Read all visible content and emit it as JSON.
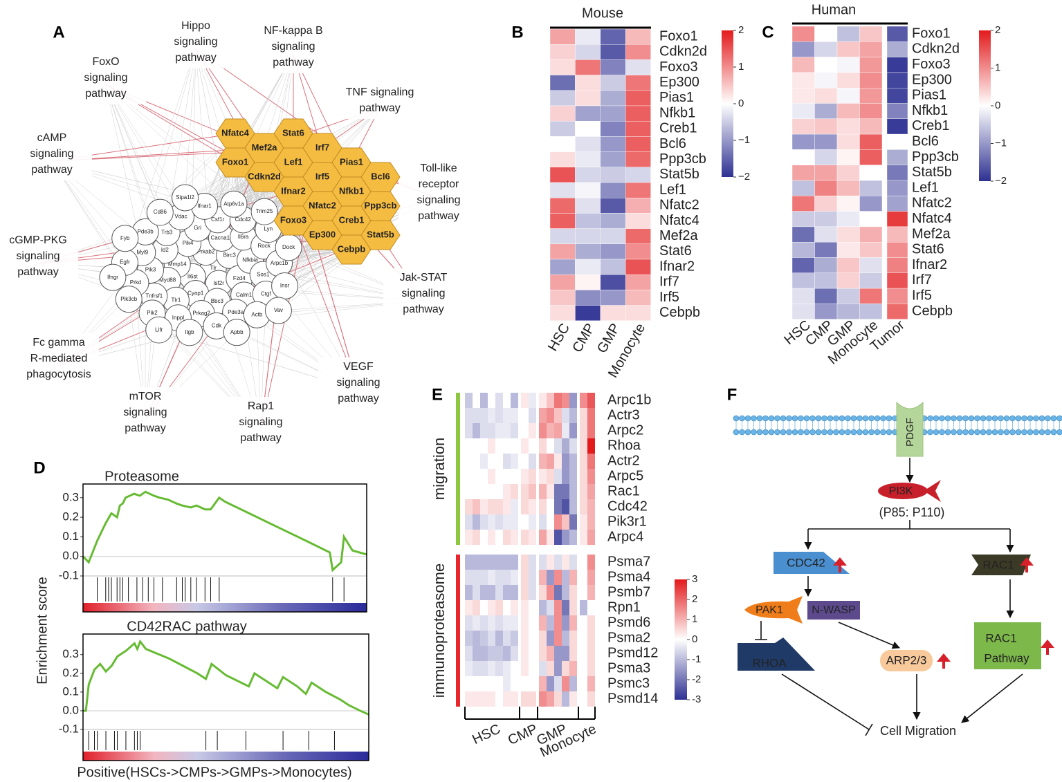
{
  "panel_a": {
    "label": "A",
    "pathways": [
      [
        "FoxO",
        "signaling",
        "pathway"
      ],
      [
        "Hippo",
        "signaling",
        "pathway"
      ],
      [
        "NF-kappa B",
        "signaling",
        "pathway"
      ],
      [
        "TNF signaling",
        "pathway"
      ],
      [
        "cAMP",
        "signaling",
        "pathway"
      ],
      [
        "Toll-like",
        "receptor",
        "signaling",
        "pathway"
      ],
      [
        "cGMP-PKG",
        "signaling",
        "pathway"
      ],
      [
        "Jak-STAT",
        "signaling",
        "pathway"
      ],
      [
        "Fc gamma",
        "R-mediated",
        "phagocytosis"
      ],
      [
        "VEGF",
        "signaling",
        "pathway"
      ],
      [
        "mTOR",
        "signaling",
        "pathway"
      ],
      [
        "Rap1",
        "signaling",
        "pathway"
      ]
    ],
    "hub_genes": [
      "Nfatc4",
      "Foxo1",
      "Mef2a",
      "Cdkn2d",
      "Stat6",
      "Lef1",
      "Ifnar2",
      "Foxo3",
      "Irf7",
      "Irf5",
      "Nfatc2",
      "Ep300",
      "Pias1",
      "Nfkb1",
      "Creb1",
      "Cebpb",
      "Bcl6",
      "Ppp3cb",
      "Stat5b"
    ],
    "genes": [
      "Tlr",
      "Il6st",
      "Prkab2",
      "Isf2r",
      "Mmp14",
      "Birc3",
      "Cyap1",
      "Pik4",
      "Fzd4",
      "Myd88",
      "Cacna1d",
      "Bbc3",
      "Id2",
      "Nfkbia",
      "Tlr1",
      "Gri",
      "Calm1",
      "Pik3",
      "Il6ra",
      "Prkag2",
      "Trb3",
      "Sos1",
      "Tnfrsf1",
      "Csf1r",
      "Pde3a",
      "Myl9",
      "Rock",
      "Inppl",
      "Vdac",
      "Ctgf",
      "Prkd",
      "Cdc42",
      "Cdk",
      "Pde3b",
      "Arpc1b",
      "Pik2",
      "Ifnar1",
      "Actb",
      "Egfr",
      "Lyn",
      "Itgb",
      "Cd86",
      "Insr",
      "Pik3cb",
      "Atp6v1a",
      "Apbb",
      "Fyb",
      "Dock",
      "Lifr",
      "Sipa1l2",
      "Vav",
      "Ifngr",
      "Trim25"
    ]
  },
  "panel_b": {
    "label": "B",
    "title": "Mouse",
    "columns": [
      "HSC",
      "CMP",
      "GMP",
      "Monocyte"
    ],
    "rows": [
      "Foxo1",
      "Cdkn2d",
      "Foxo3",
      "Ep300",
      "Pias1",
      "Nfkb1",
      "Creb1",
      "Bcl6",
      "Ppp3cb",
      "Stat5b",
      "Lef1",
      "Nfatc2",
      "Nfatc4",
      "Mef2a",
      "Stat6",
      "Ifnar2",
      "Irf7",
      "Irf5",
      "Cebpb"
    ],
    "values": [
      [
        0.8,
        -0.2,
        -1.5,
        0.6
      ],
      [
        0.4,
        -0.4,
        -1.6,
        1.0
      ],
      [
        0.3,
        1.2,
        -1.2,
        -0.3
      ],
      [
        -1.4,
        0.3,
        -0.5,
        1.2
      ],
      [
        -0.5,
        0.3,
        -0.8,
        1.4
      ],
      [
        0.4,
        -0.9,
        -0.9,
        1.4
      ],
      [
        -0.5,
        0.0,
        -1.2,
        1.4
      ],
      [
        0.0,
        -0.3,
        -1.0,
        1.4
      ],
      [
        0.3,
        -0.2,
        -0.9,
        1.3
      ],
      [
        1.5,
        -0.4,
        -0.5,
        -0.4
      ],
      [
        -0.3,
        -0.1,
        -1.1,
        1.2
      ],
      [
        1.3,
        -0.3,
        -1.6,
        0.7
      ],
      [
        1.4,
        -0.6,
        -0.8,
        0.3
      ],
      [
        -0.4,
        -0.4,
        -0.4,
        1.3
      ],
      [
        0.8,
        -0.8,
        -1.0,
        1.0
      ],
      [
        -0.9,
        -0.2,
        -0.6,
        1.5
      ],
      [
        0.8,
        0.1,
        -1.7,
        0.8
      ],
      [
        0.5,
        -1.1,
        -1.0,
        0.6
      ],
      [
        0.3,
        -1.9,
        0.3,
        0.3
      ]
    ],
    "colors": [
      "#2e3192",
      "#ffffff",
      "#e31a1c"
    ],
    "lim": [
      -2,
      2
    ],
    "ticks": [
      2,
      1,
      0,
      {
        "value": -1,
        "label": "−1"
      },
      {
        "value": -2,
        "label": "−2"
      }
    ]
  },
  "panel_c": {
    "label": "C",
    "title": "Human",
    "columns": [
      "HSC",
      "CMP",
      "GMP",
      "Monocyte",
      "Tumor"
    ],
    "rows": [
      "Foxo1",
      "Cdkn2d",
      "Foxo3",
      "Ep300",
      "Pias1",
      "Nfkb1",
      "Creb1",
      "Bcl6",
      "Ppp3cb",
      "Stat5b",
      "Lef1",
      "Nfatc2",
      "Nfatc4",
      "Mef2a",
      "Stat6",
      "Ifnar2",
      "Irf7",
      "Irf5",
      "Cebpb"
    ],
    "values": [
      [
        1.0,
        0.0,
        -0.6,
        0.5,
        -1.6
      ],
      [
        -1.0,
        -0.4,
        0.5,
        0.8,
        -0.8
      ],
      [
        0.6,
        0.0,
        -0.1,
        0.9,
        -1.9
      ],
      [
        0.2,
        -0.1,
        0.3,
        1.0,
        -1.8
      ],
      [
        0.2,
        0.3,
        -0.1,
        0.9,
        -1.8
      ],
      [
        -0.2,
        -0.8,
        0.6,
        1.0,
        -1.2
      ],
      [
        0.4,
        0.5,
        0.3,
        0.6,
        -1.9
      ],
      [
        -1.0,
        -1.0,
        0.3,
        1.4,
        0.0
      ],
      [
        0.0,
        -0.4,
        0.1,
        1.4,
        -0.8
      ],
      [
        0.8,
        0.8,
        0.4,
        0.0,
        -1.3
      ],
      [
        -0.6,
        1.1,
        0.6,
        -0.6,
        -1.0
      ],
      [
        1.2,
        0.4,
        0.1,
        -1.0,
        -0.9
      ],
      [
        -0.5,
        -0.5,
        -0.2,
        0.0,
        1.7
      ],
      [
        -1.4,
        -0.3,
        0.3,
        0.7,
        0.6
      ],
      [
        -0.7,
        -1.3,
        0.2,
        0.5,
        1.0
      ],
      [
        -1.5,
        -0.8,
        0.5,
        -0.3,
        1.1
      ],
      [
        -0.6,
        -0.6,
        0.4,
        -0.5,
        1.5
      ],
      [
        -0.3,
        -1.4,
        -0.5,
        1.2,
        1.0
      ],
      [
        -0.3,
        -1.0,
        -0.7,
        -0.6,
        1.3
      ]
    ],
    "colors": [
      "#2e3192",
      "#ffffff",
      "#e31a1c"
    ],
    "lim": [
      -2,
      2
    ],
    "ticks": [
      2,
      1,
      0,
      {
        "value": -1,
        "label": "−1"
      },
      {
        "value": -2,
        "label": "−2"
      }
    ]
  },
  "panel_d": {
    "label": "D",
    "y_label": "Enrichment score",
    "x_label": "Positive(HSCs->CMPs->GMPs->Monocytes)",
    "color": "#66bb33",
    "plots": [
      {
        "type": "line",
        "title": "Proteasome",
        "x": [
          0,
          0.02,
          0.05,
          0.08,
          0.1,
          0.12,
          0.13,
          0.14,
          0.15,
          0.18,
          0.2,
          0.22,
          0.25,
          0.27,
          0.3,
          0.33,
          0.35,
          0.38,
          0.4,
          0.43,
          0.45,
          0.48,
          0.5,
          0.6,
          0.7,
          0.8,
          0.87,
          0.88,
          0.91,
          0.92,
          0.95,
          1
        ],
        "values": [
          0,
          -0.03,
          0.08,
          0.17,
          0.22,
          0.2,
          0.26,
          0.27,
          0.3,
          0.32,
          0.31,
          0.33,
          0.31,
          0.3,
          0.29,
          0.27,
          0.26,
          0.25,
          0.26,
          0.24,
          0.24,
          0.3,
          0.28,
          0.21,
          0.14,
          0.07,
          0.02,
          -0.07,
          -0.03,
          0.1,
          0.03,
          0.01
        ],
        "hits": [
          0.05,
          0.08,
          0.09,
          0.1,
          0.12,
          0.13,
          0.14,
          0.16,
          0.19,
          0.21,
          0.23,
          0.25,
          0.28,
          0.33,
          0.35,
          0.36,
          0.38,
          0.4,
          0.43,
          0.45,
          0.48,
          0.88,
          0.92
        ],
        "xlim": [
          0,
          1
        ],
        "ylim": [
          -0.1,
          0.37
        ],
        "yticks": [
          0.3,
          0.2,
          0.1,
          {
            "value": 0,
            "label": "0.0"
          },
          -0.1
        ]
      },
      {
        "type": "line",
        "title": "CD42RAC pathway",
        "x": [
          0,
          0.01,
          0.02,
          0.04,
          0.06,
          0.08,
          0.1,
          0.12,
          0.15,
          0.18,
          0.19,
          0.2,
          0.22,
          0.3,
          0.35,
          0.4,
          0.43,
          0.45,
          0.5,
          0.58,
          0.6,
          0.68,
          0.7,
          0.75,
          0.78,
          0.8,
          0.85,
          0.9,
          0.93,
          0.97,
          1
        ],
        "values": [
          0,
          0,
          0.14,
          0.22,
          0.25,
          0.21,
          0.24,
          0.29,
          0.32,
          0.36,
          0.33,
          0.37,
          0.33,
          0.28,
          0.24,
          0.2,
          0.17,
          0.25,
          0.19,
          0.13,
          0.2,
          0.12,
          0.18,
          0.13,
          0.09,
          0.15,
          0.1,
          0.06,
          0.03,
          0,
          -0.02
        ],
        "hits": [
          0.02,
          0.04,
          0.05,
          0.08,
          0.11,
          0.12,
          0.15,
          0.18,
          0.19,
          0.2,
          0.43,
          0.47,
          0.57,
          0.7,
          0.79,
          0.88
        ],
        "xlim": [
          0,
          1
        ],
        "ylim": [
          -0.1,
          0.41
        ],
        "yticks": [
          0.3,
          0.2,
          0.1,
          {
            "value": 0,
            "label": "0.0"
          },
          -0.1
        ]
      }
    ]
  },
  "panel_e": {
    "label": "E",
    "columns": [
      "HSC",
      "CMP",
      "GMP",
      "Monocyte"
    ],
    "colors": [
      "#2e3192",
      "#ffffff",
      "#e31a1c"
    ],
    "lim": [
      -3,
      3
    ],
    "ticks": [
      3,
      2,
      1,
      0,
      -1,
      -2,
      -3
    ],
    "sections": [
      {
        "name": "migration",
        "color": "#8dc63f",
        "rows": [
          "Arpc1b",
          "Actr3",
          "Arpc2",
          "Rhoa",
          "Actr2",
          "Arpc5",
          "Rac1",
          "Cdc42",
          "Pik3r1",
          "Arpc4"
        ],
        "values": [
          [
            -0.8,
            0,
            -1,
            0,
            -0.5,
            0,
            -1,
            0.3,
            -0.3,
            0.3,
            0.8,
            1.8,
            1.5,
            -1.5,
            1.5,
            2.2
          ],
          [
            -0.5,
            -0.5,
            -0.5,
            -0.3,
            -0.5,
            -0.3,
            -0.3,
            0,
            -0.5,
            1.2,
            1.5,
            0.8,
            -0.5,
            -1,
            0.5,
            1.8
          ],
          [
            -0.5,
            -1,
            -0.5,
            -0.5,
            -0.3,
            -0.3,
            -0.5,
            0,
            0.3,
            1.5,
            1,
            1.2,
            -0.3,
            -1.5,
            0.5,
            1.8
          ],
          [
            0,
            0,
            0,
            0.3,
            0,
            0,
            0,
            0.3,
            0,
            0.5,
            0,
            -0.5,
            -1.2,
            -0.5,
            0.5,
            3
          ],
          [
            0,
            0,
            -0.3,
            0,
            0,
            -0.5,
            -0.3,
            0,
            -0.5,
            1,
            1.2,
            0.3,
            -1.5,
            -1,
            0.5,
            1.8
          ],
          [
            0,
            0,
            0,
            0.3,
            0,
            0,
            0,
            0.3,
            0.5,
            0.3,
            0.5,
            -0.5,
            -1.5,
            -1,
            0.5,
            1.5
          ],
          [
            0,
            0,
            0,
            0,
            0,
            0.3,
            0.5,
            0.5,
            0.8,
            1,
            0.3,
            -2,
            -2,
            -1,
            0.5,
            1.2
          ],
          [
            0.5,
            0.8,
            0.3,
            0.5,
            0.5,
            0.3,
            -0.3,
            0.5,
            0.3,
            0.5,
            0,
            -2,
            -2.5,
            -1,
            0.5,
            1
          ],
          [
            -0.5,
            -1,
            -0.5,
            -0.3,
            -0.5,
            -0.3,
            -0.3,
            0,
            -0.3,
            -0.5,
            0,
            1.5,
            0.8,
            -2,
            0.3,
            1
          ],
          [
            0.3,
            0.5,
            0,
            0.3,
            0,
            0.5,
            0.3,
            0.5,
            0.3,
            1.2,
            0.3,
            -2.5,
            -1.5,
            -1,
            0.3,
            1.2
          ]
        ]
      },
      {
        "name": "immunoproteasome",
        "color": "#e8262c",
        "rows": [
          "Psma7",
          "Psma4",
          "Psmb7",
          "Rpn1",
          "Psmd6",
          "Psma2",
          "Psmd12",
          "Psma3",
          "Psmc3",
          "Psmd14"
        ],
        "values": [
          [
            -1,
            -1,
            -1,
            -1,
            -1,
            -1,
            -1,
            0.5,
            -0.5,
            -0.5,
            0.3,
            -0.5,
            0.3,
            -0.5,
            0,
            1.5
          ],
          [
            -0.5,
            -0.5,
            -0.5,
            -0.3,
            -0.5,
            -0.5,
            -0.3,
            0.5,
            -0.5,
            1,
            -1.5,
            1.5,
            -1,
            1,
            0,
            1.2
          ],
          [
            -1,
            -0.5,
            -1,
            -1,
            -0.5,
            -1,
            -1,
            0.5,
            -0.5,
            0.5,
            1.5,
            -2,
            -1,
            0.5,
            0,
            1
          ],
          [
            0.3,
            0.5,
            0,
            0.3,
            0.5,
            0,
            0.3,
            0.3,
            0,
            -1,
            -0.5,
            1.5,
            -2,
            0.5,
            -1,
            0
          ],
          [
            -0.5,
            -0.3,
            -0.5,
            -0.3,
            -0.5,
            -0.3,
            -0.3,
            0.3,
            0,
            1,
            -1,
            1.5,
            -1.5,
            1,
            0,
            0.5
          ],
          [
            -0.8,
            -1,
            -0.8,
            -0.5,
            -1,
            -0.5,
            -0.8,
            0.3,
            0,
            0.5,
            -1.5,
            1.5,
            -1,
            0.5,
            0,
            0.5
          ],
          [
            -0.5,
            -1,
            -1,
            -0.8,
            -0.8,
            -1,
            -0.5,
            0.3,
            0,
            0.5,
            1,
            -1.5,
            -1.5,
            0.5,
            0,
            0.5
          ],
          [
            -0.3,
            -0.5,
            -0.5,
            -0.3,
            -0.5,
            -0.3,
            0,
            0.3,
            0,
            -0.5,
            0.5,
            -1.5,
            0.5,
            1,
            0,
            0.5
          ],
          [
            0,
            0,
            0,
            0,
            0,
            -0.3,
            0,
            0,
            0,
            1,
            -1.5,
            -0.5,
            1.5,
            -1,
            0,
            1
          ],
          [
            0.3,
            0.3,
            0.3,
            0.3,
            0,
            0.3,
            0.3,
            0.5,
            0.5,
            1.5,
            1.2,
            0.5,
            -1,
            0.3,
            0,
            0.5
          ]
        ]
      }
    ]
  },
  "panel_f": {
    "label": "F",
    "receptor": "PDGF",
    "pi3k": "PI3K",
    "pi3k_subunits": "(P85: P110)",
    "cdc42": "CDC42",
    "rac1": "RAC1",
    "pak1": "PAK1",
    "nwasp": "N-WASP",
    "rhoa": "RHOA",
    "arp23": "ARP2/3",
    "rac1_pathway": [
      "RAC1",
      "Pathway"
    ],
    "outcome": "Cell Migration"
  }
}
